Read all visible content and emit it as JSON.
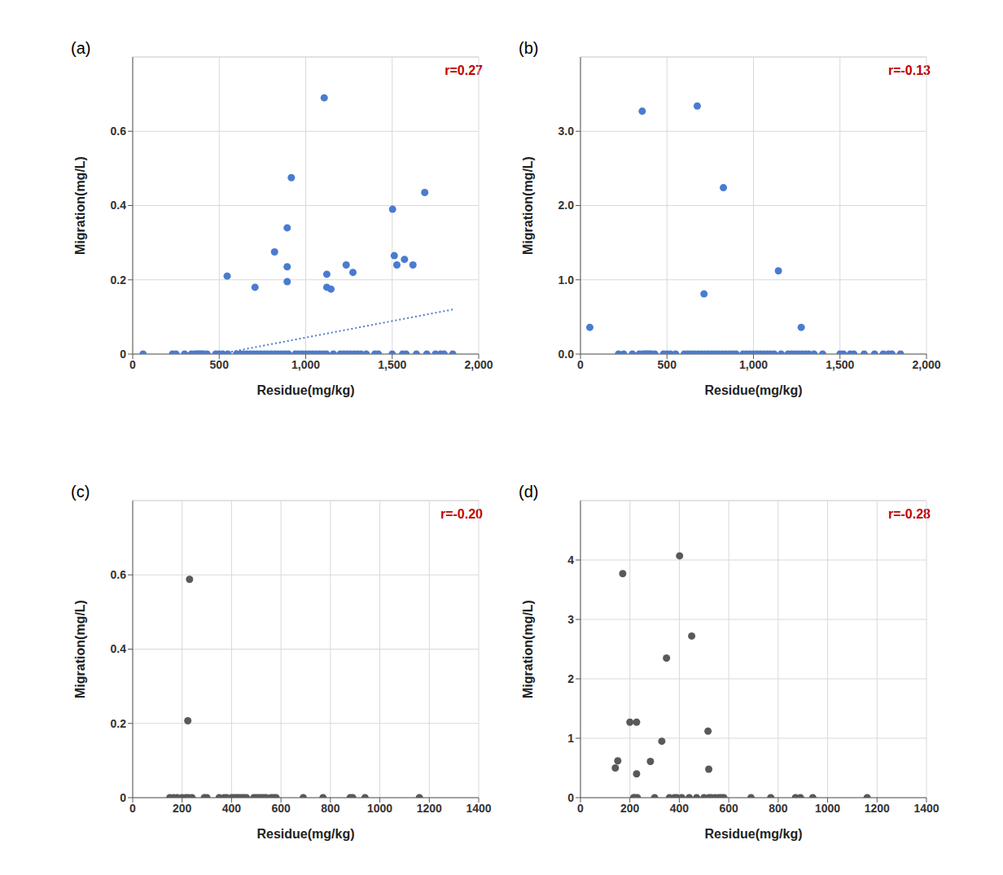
{
  "chart_data": [
    {
      "type": "scatter",
      "title": "(a)",
      "annotation": "r=0.27",
      "x_label": "Residue(mg/kg)",
      "y_label": "Migration(mg/L)",
      "color": "#4a7bd0",
      "grid": true,
      "xlim": [
        0,
        2000
      ],
      "xticks": [
        0,
        500,
        {
          "value": 1000,
          "label": "1,000"
        },
        {
          "value": 1500,
          "label": "1,500"
        },
        {
          "value": 2000,
          "label": "2,000"
        }
      ],
      "ylim": [
        0,
        0.8
      ],
      "yticks": [
        0,
        0.2,
        0.4,
        0.6
      ],
      "x": [
        546,
        707,
        820,
        893,
        893,
        893,
        917,
        1107,
        1122,
        1122,
        1146,
        1234,
        1273,
        1502,
        1512,
        1527,
        1571,
        1620,
        1688,
        60,
        230,
        250,
        300,
        340,
        360,
        370,
        380,
        390,
        400,
        410,
        430,
        480,
        500,
        520,
        550,
        600,
        620,
        640,
        660,
        680,
        700,
        720,
        740,
        760,
        780,
        800,
        820,
        840,
        860,
        880,
        900,
        940,
        960,
        980,
        1000,
        1020,
        1040,
        1060,
        1080,
        1100,
        1120,
        1160,
        1200,
        1220,
        1240,
        1260,
        1280,
        1300,
        1320,
        1350,
        1400,
        1420,
        1500,
        1560,
        1580,
        1640,
        1700,
        1750,
        1780,
        1800,
        1850
      ],
      "values": [
        0.21,
        0.18,
        0.275,
        0.34,
        0.235,
        0.195,
        0.475,
        0.69,
        0.215,
        0.18,
        0.175,
        0.24,
        0.22,
        0.39,
        0.265,
        0.24,
        0.255,
        0.24,
        0.435,
        0,
        0,
        0,
        0,
        0,
        0,
        0,
        0,
        0,
        0,
        0,
        0,
        0,
        0,
        0,
        0,
        0,
        0,
        0,
        0,
        0,
        0,
        0,
        0,
        0,
        0,
        0,
        0,
        0,
        0,
        0,
        0,
        0,
        0,
        0,
        0,
        0,
        0,
        0,
        0,
        0,
        0,
        0,
        0,
        0,
        0,
        0,
        0,
        0,
        0,
        0,
        0,
        0,
        0,
        0,
        0,
        0,
        0,
        0,
        0,
        0,
        0
      ],
      "trendline": {
        "x": [
          500,
          1850
        ],
        "values": [
          0,
          0.12
        ]
      }
    },
    {
      "type": "scatter",
      "title": "(b)",
      "annotation": "r=-0.13",
      "x_label": "Residue(mg/kg)",
      "y_label": "Migration(mg/L)",
      "color": "#4a7bd0",
      "grid": true,
      "xlim": [
        0,
        2000
      ],
      "xticks": [
        0,
        500,
        {
          "value": 1000,
          "label": "1,000"
        },
        {
          "value": 1500,
          "label": "1,500"
        },
        {
          "value": 2000,
          "label": "2,000"
        }
      ],
      "ylim": [
        0,
        4
      ],
      "yticks": [
        {
          "value": 0,
          "label": "0.0"
        },
        {
          "value": 1,
          "label": "1.0"
        },
        {
          "value": 2,
          "label": "2.0"
        },
        {
          "value": 3,
          "label": "3.0"
        }
      ],
      "x": [
        54,
        357,
        675,
        826,
        714,
        1144,
        1276,
        220,
        250,
        300,
        340,
        360,
        370,
        380,
        390,
        400,
        410,
        430,
        480,
        500,
        520,
        550,
        600,
        620,
        640,
        660,
        680,
        700,
        720,
        740,
        760,
        780,
        800,
        820,
        840,
        860,
        880,
        900,
        940,
        960,
        980,
        1000,
        1020,
        1040,
        1060,
        1080,
        1100,
        1120,
        1160,
        1200,
        1220,
        1240,
        1260,
        1280,
        1300,
        1320,
        1350,
        1400,
        1500,
        1520,
        1560,
        1580,
        1640,
        1700,
        1750,
        1780,
        1800,
        1850
      ],
      "values": [
        0.36,
        3.27,
        3.34,
        2.24,
        0.81,
        1.12,
        0.36,
        0,
        0,
        0,
        0,
        0,
        0,
        0,
        0,
        0,
        0,
        0,
        0,
        0,
        0,
        0,
        0,
        0,
        0,
        0,
        0,
        0,
        0,
        0,
        0,
        0,
        0,
        0,
        0,
        0,
        0,
        0,
        0,
        0,
        0,
        0,
        0,
        0,
        0,
        0,
        0,
        0,
        0,
        0,
        0,
        0,
        0,
        0,
        0,
        0,
        0,
        0,
        0,
        0,
        0,
        0,
        0,
        0,
        0,
        0,
        0,
        0
      ]
    },
    {
      "type": "scatter",
      "title": "(c)",
      "annotation": "r=-0.20",
      "x_label": "Residue(mg/kg)",
      "y_label": "Migration(mg/L)",
      "color": "#595959",
      "grid": true,
      "xlim": [
        0,
        1400
      ],
      "xticks": [
        0,
        200,
        400,
        600,
        800,
        1000,
        1200,
        1400
      ],
      "ylim": [
        0,
        0.8
      ],
      "yticks": [
        0,
        0.2,
        0.4,
        0.6
      ],
      "x": [
        230,
        223,
        150,
        165,
        180,
        200,
        215,
        225,
        240,
        290,
        300,
        350,
        370,
        380,
        400,
        410,
        420,
        430,
        440,
        450,
        460,
        490,
        500,
        510,
        520,
        530,
        540,
        560,
        570,
        580,
        690,
        770,
        880,
        890,
        940,
        1160
      ],
      "values": [
        0.588,
        0.207,
        0,
        0,
        0,
        0,
        0,
        0,
        0,
        0,
        0,
        0,
        0,
        0,
        0,
        0,
        0,
        0,
        0,
        0,
        0,
        0,
        0,
        0,
        0,
        0,
        0,
        0,
        0,
        0,
        0,
        0,
        0,
        0,
        0,
        0
      ]
    },
    {
      "type": "scatter",
      "title": "(d)",
      "annotation": "r=-0.28",
      "x_label": "Residue(mg/kg)",
      "y_label": "Migration(mg/L)",
      "color": "#595959",
      "grid": true,
      "xlim": [
        0,
        1400
      ],
      "xticks": [
        0,
        200,
        400,
        600,
        800,
        1000,
        1200,
        1400
      ],
      "ylim": [
        0,
        5
      ],
      "yticks": [
        0,
        1,
        2,
        3,
        4
      ],
      "x": [
        141,
        151,
        171,
        200,
        227,
        227,
        283,
        329,
        348,
        401,
        450,
        516,
        519,
        215,
        220,
        230,
        300,
        360,
        380,
        390,
        410,
        440,
        470,
        500,
        520,
        530,
        545,
        560,
        570,
        580,
        690,
        770,
        870,
        890,
        940,
        1160
      ],
      "values": [
        0.5,
        0.62,
        3.77,
        1.27,
        1.27,
        0.4,
        0.61,
        0.95,
        2.35,
        4.07,
        2.72,
        1.12,
        0.48,
        0,
        0,
        0,
        0,
        0,
        0,
        0,
        0,
        0,
        0,
        0,
        0,
        0,
        0,
        0,
        0,
        0,
        0,
        0,
        0,
        0,
        0,
        0
      ]
    }
  ]
}
